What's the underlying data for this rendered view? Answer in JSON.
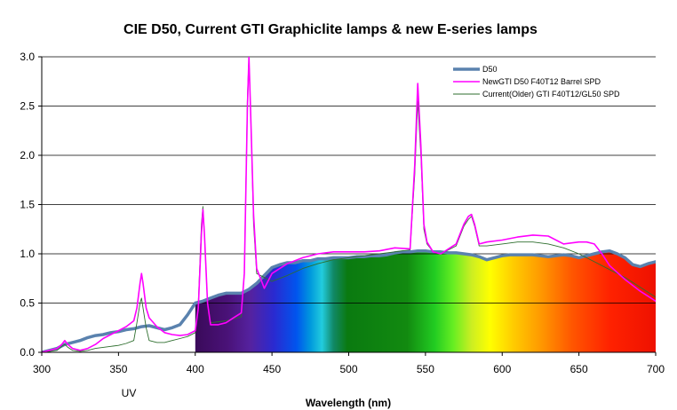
{
  "chart_data": {
    "type": "line",
    "title": "CIE D50, Current GTI Graphiclite lamps & new E-series lamps",
    "xlabel": "Wavelength (nm)",
    "ylabel": "",
    "annotations": [
      {
        "text": "UV",
        "x": 357
      }
    ],
    "xlim": [
      300,
      700
    ],
    "ylim": [
      0,
      3.0
    ],
    "xticks": [
      300,
      350,
      400,
      450,
      500,
      550,
      600,
      650,
      700
    ],
    "yticks": [
      0.0,
      0.5,
      1.0,
      1.5,
      2.0,
      2.5,
      3.0
    ],
    "ytick_labels": [
      "0.0",
      "0.5",
      "1.0",
      "1.5",
      "2.0",
      "2.5",
      "3.0"
    ],
    "grid": "horizontal",
    "legend_position": "top-right",
    "background": "visible spectrum gradient fill under the D50 curve",
    "series": [
      {
        "name": "D50",
        "color": "#5a82ae",
        "x": [
          300,
          305,
          310,
          315,
          320,
          325,
          330,
          335,
          340,
          345,
          350,
          355,
          360,
          365,
          370,
          375,
          380,
          385,
          390,
          395,
          400,
          405,
          410,
          415,
          420,
          425,
          430,
          435,
          440,
          445,
          450,
          455,
          460,
          465,
          470,
          475,
          480,
          485,
          490,
          495,
          500,
          505,
          510,
          515,
          520,
          525,
          530,
          535,
          540,
          545,
          550,
          555,
          560,
          565,
          570,
          575,
          580,
          585,
          590,
          595,
          600,
          605,
          610,
          615,
          620,
          625,
          630,
          635,
          640,
          645,
          650,
          655,
          660,
          665,
          670,
          675,
          680,
          685,
          690,
          695,
          700
        ],
        "values": [
          0.0,
          0.02,
          0.04,
          0.08,
          0.1,
          0.12,
          0.15,
          0.17,
          0.18,
          0.2,
          0.21,
          0.23,
          0.24,
          0.26,
          0.27,
          0.25,
          0.23,
          0.25,
          0.28,
          0.38,
          0.5,
          0.52,
          0.55,
          0.58,
          0.6,
          0.6,
          0.6,
          0.64,
          0.7,
          0.78,
          0.86,
          0.89,
          0.91,
          0.91,
          0.93,
          0.93,
          0.95,
          0.95,
          0.96,
          0.96,
          0.96,
          0.97,
          0.97,
          0.98,
          0.98,
          0.99,
          1.01,
          1.02,
          1.02,
          1.03,
          1.03,
          1.02,
          1.02,
          1.01,
          1.01,
          1.0,
          0.99,
          0.97,
          0.94,
          0.96,
          0.98,
          0.99,
          0.99,
          0.99,
          0.99,
          0.98,
          0.97,
          0.98,
          0.99,
          0.98,
          0.96,
          0.98,
          1.0,
          1.02,
          1.03,
          1.0,
          0.96,
          0.89,
          0.87,
          0.9,
          0.92
        ]
      },
      {
        "name": "NewGTI D50 F40T12 Barrel SPD",
        "color": "#ff00ff",
        "x": [
          300,
          305,
          310,
          313,
          315,
          317,
          320,
          325,
          330,
          335,
          340,
          345,
          350,
          355,
          360,
          362,
          364,
          365,
          366,
          368,
          370,
          375,
          380,
          385,
          390,
          395,
          400,
          402,
          404,
          405,
          406,
          408,
          410,
          415,
          420,
          425,
          430,
          432,
          434,
          435,
          436,
          438,
          440,
          445,
          450,
          460,
          470,
          480,
          490,
          500,
          510,
          520,
          530,
          540,
          543,
          545,
          547,
          549,
          551,
          555,
          560,
          570,
          575,
          578,
          580,
          582,
          585,
          590,
          600,
          610,
          620,
          630,
          640,
          650,
          655,
          660,
          665,
          670,
          680,
          690,
          700
        ],
        "values": [
          0.0,
          0.02,
          0.04,
          0.08,
          0.12,
          0.08,
          0.04,
          0.02,
          0.04,
          0.08,
          0.14,
          0.18,
          0.22,
          0.26,
          0.32,
          0.45,
          0.7,
          0.8,
          0.7,
          0.45,
          0.35,
          0.26,
          0.2,
          0.18,
          0.17,
          0.18,
          0.22,
          0.45,
          1.2,
          1.45,
          1.2,
          0.5,
          0.28,
          0.28,
          0.3,
          0.35,
          0.4,
          0.8,
          2.5,
          3.0,
          2.5,
          1.4,
          0.85,
          0.65,
          0.8,
          0.9,
          0.96,
          1.0,
          1.02,
          1.02,
          1.02,
          1.03,
          1.06,
          1.05,
          1.9,
          2.73,
          2.1,
          1.3,
          1.12,
          1.02,
          1.0,
          1.1,
          1.3,
          1.38,
          1.4,
          1.3,
          1.1,
          1.12,
          1.14,
          1.17,
          1.19,
          1.18,
          1.1,
          1.12,
          1.12,
          1.1,
          1.0,
          0.88,
          0.74,
          0.62,
          0.52
        ]
      },
      {
        "name": "Current(Older) GTI F40T12/GL50 SPD",
        "color": "#2e6e2e",
        "x": [
          300,
          305,
          310,
          313,
          315,
          317,
          320,
          325,
          330,
          335,
          340,
          345,
          350,
          355,
          360,
          362,
          364,
          365,
          366,
          368,
          370,
          375,
          380,
          385,
          390,
          395,
          400,
          402,
          404,
          405,
          406,
          408,
          410,
          420,
          430,
          432,
          434,
          435,
          436,
          438,
          440,
          450,
          460,
          470,
          480,
          490,
          500,
          510,
          520,
          530,
          540,
          543,
          545,
          547,
          549,
          551,
          555,
          560,
          570,
          575,
          578,
          580,
          582,
          585,
          590,
          600,
          610,
          620,
          630,
          640,
          650,
          660,
          670,
          680,
          690,
          700
        ],
        "values": [
          0.0,
          0.01,
          0.02,
          0.06,
          0.08,
          0.05,
          0.02,
          0.01,
          0.02,
          0.04,
          0.05,
          0.06,
          0.07,
          0.09,
          0.12,
          0.3,
          0.5,
          0.55,
          0.45,
          0.25,
          0.12,
          0.1,
          0.1,
          0.12,
          0.14,
          0.16,
          0.2,
          0.5,
          1.3,
          1.48,
          1.2,
          0.5,
          0.3,
          0.32,
          0.36,
          0.8,
          2.6,
          3.0,
          2.5,
          1.3,
          0.8,
          0.72,
          0.78,
          0.85,
          0.9,
          0.94,
          0.96,
          0.98,
          1.0,
          1.02,
          1.04,
          1.8,
          2.55,
          2.0,
          1.25,
          1.1,
          1.02,
          1.0,
          1.08,
          1.28,
          1.35,
          1.38,
          1.28,
          1.08,
          1.08,
          1.1,
          1.12,
          1.12,
          1.1,
          1.06,
          1.0,
          0.92,
          0.84,
          0.76,
          0.66,
          0.56
        ]
      }
    ]
  }
}
